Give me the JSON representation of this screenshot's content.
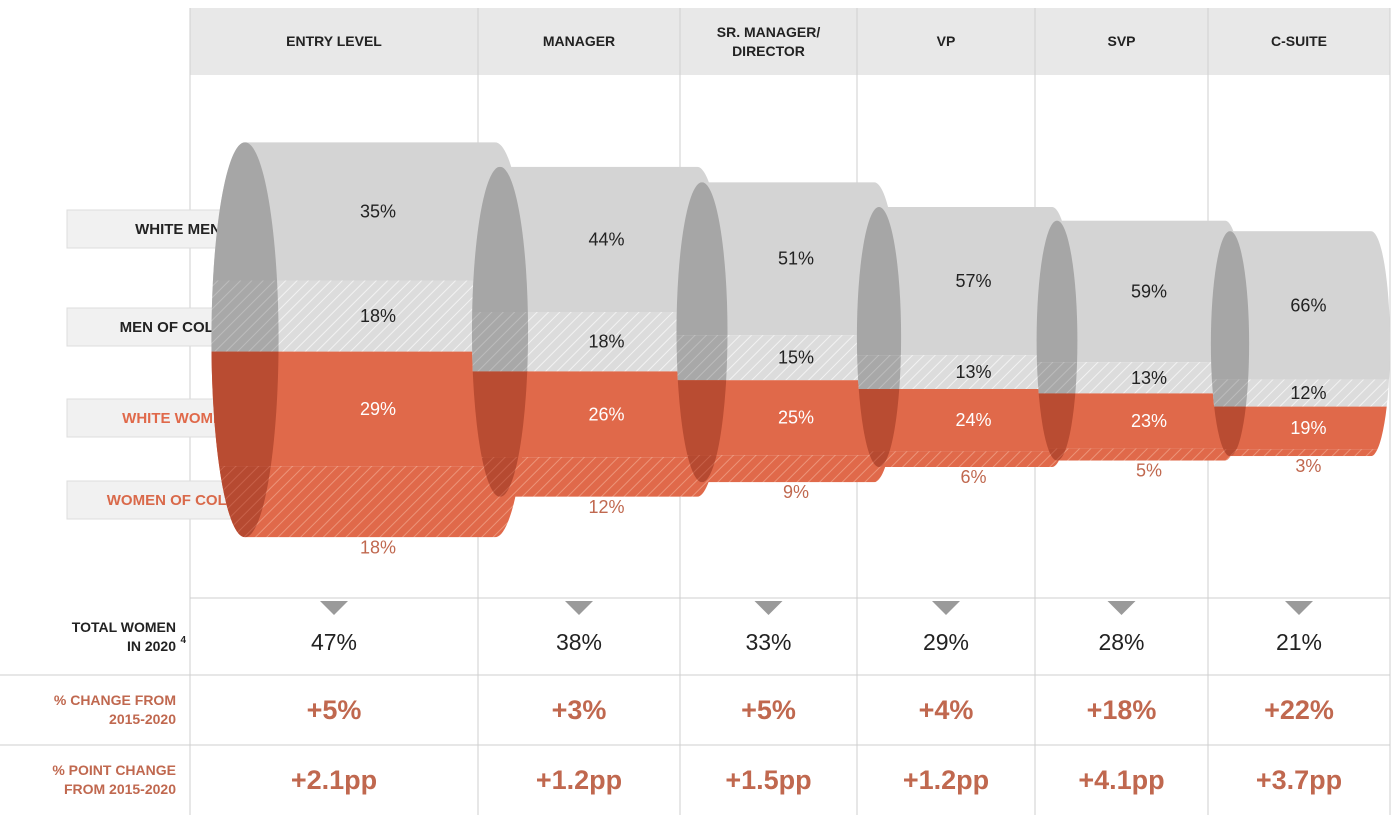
{
  "chart_data": {
    "type": "pipeline",
    "categories": [
      "ENTRY LEVEL",
      "MANAGER",
      "SR. MANAGER/ DIRECTOR",
      "VP",
      "SVP",
      "C-SUITE"
    ],
    "series": [
      {
        "name": "WHITE MEN",
        "color": "#d4d4d4",
        "values": [
          35,
          44,
          51,
          57,
          59,
          66
        ],
        "value_labels": [
          "35%",
          "44%",
          "51%",
          "57%",
          "59%",
          "66%"
        ]
      },
      {
        "name": "MEN OF COLOR",
        "color": "#dedede",
        "values": [
          18,
          18,
          15,
          13,
          13,
          12
        ],
        "value_labels": [
          "18%",
          "18%",
          "15%",
          "13%",
          "13%",
          "12%"
        ]
      },
      {
        "name": "WHITE WOMEN",
        "color": "#e0694a",
        "values": [
          29,
          26,
          25,
          24,
          23,
          19
        ],
        "value_labels": [
          "29%",
          "26%",
          "25%",
          "24%",
          "23%",
          "19%"
        ]
      },
      {
        "name": "WOMEN OF COLOR",
        "color": "#d9694a",
        "values": [
          18,
          12,
          9,
          6,
          5,
          3
        ],
        "value_labels": [
          "18%",
          "12%",
          "9%",
          "6%",
          "5%",
          "3%"
        ]
      }
    ]
  },
  "table": {
    "rows": [
      {
        "label": [
          "TOTAL WOMEN",
          "IN 2020"
        ],
        "note": "4",
        "cells": [
          "47%",
          "38%",
          "33%",
          "29%",
          "28%",
          "21%"
        ]
      },
      {
        "label": [
          "% CHANGE  FROM",
          "2015-2020"
        ],
        "cells": [
          "+5%",
          "+3%",
          "+5%",
          "+4%",
          "+18%",
          "+22%"
        ]
      },
      {
        "label": [
          "% POINT CHANGE",
          "FROM 2015-2020"
        ],
        "cells": [
          "+2.1pp",
          "+1.2pp",
          "+1.5pp",
          "+1.2pp",
          "+4.1pp",
          "+3.7pp"
        ]
      }
    ]
  }
}
